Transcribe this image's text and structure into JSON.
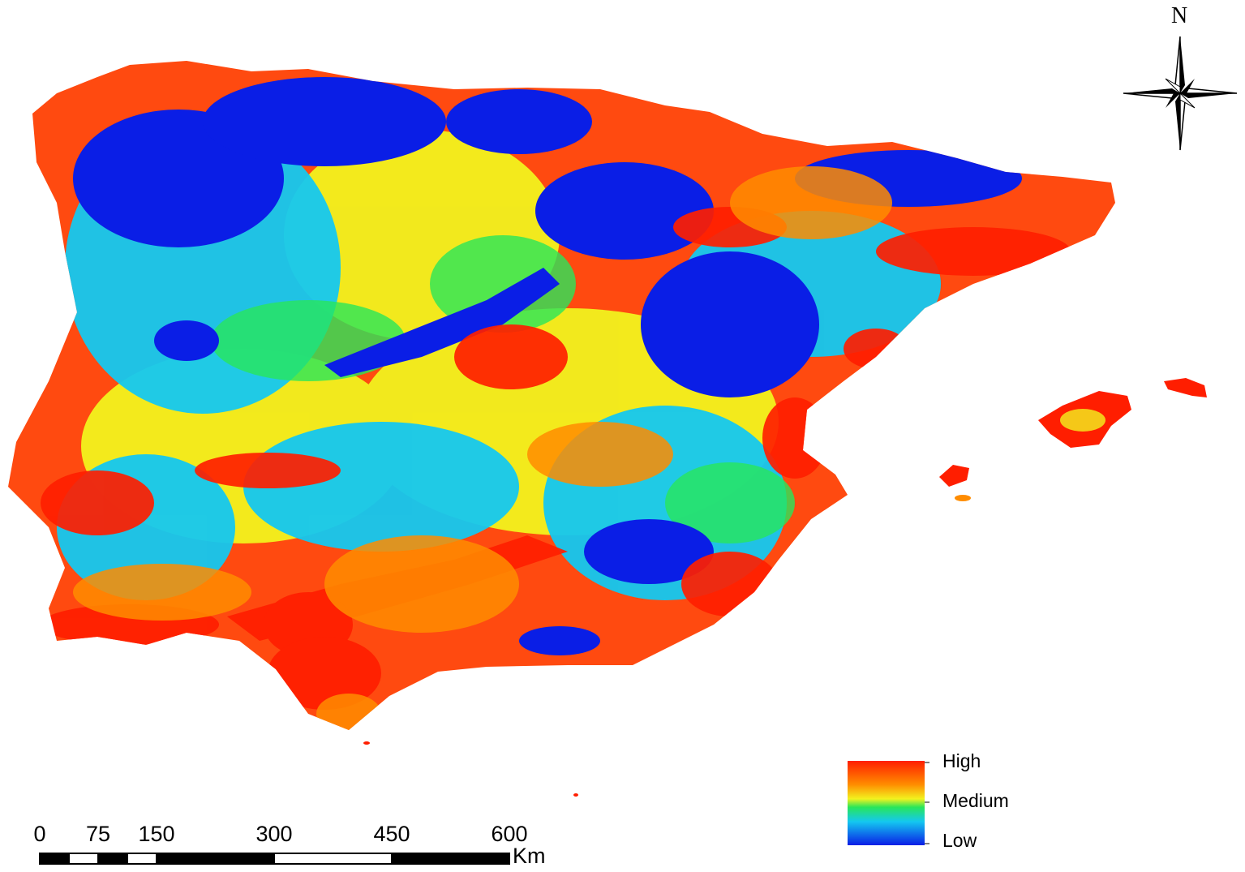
{
  "colors": {
    "high": "#ff1e00",
    "orange": "#ff8c00",
    "yellow": "#f2f21e",
    "green": "#28e65a",
    "cyan": "#14c8f0",
    "low": "#0a1ee6",
    "coast": "#ff4a10"
  },
  "map": {
    "north_arrow": {
      "label": "N"
    },
    "legend": {
      "high_label": "High",
      "medium_label": "Medium",
      "low_label": "Low"
    },
    "scale_bar": {
      "ticks": [
        "0",
        "75",
        "150",
        "300",
        "450",
        "600"
      ],
      "unit": "Km"
    }
  }
}
